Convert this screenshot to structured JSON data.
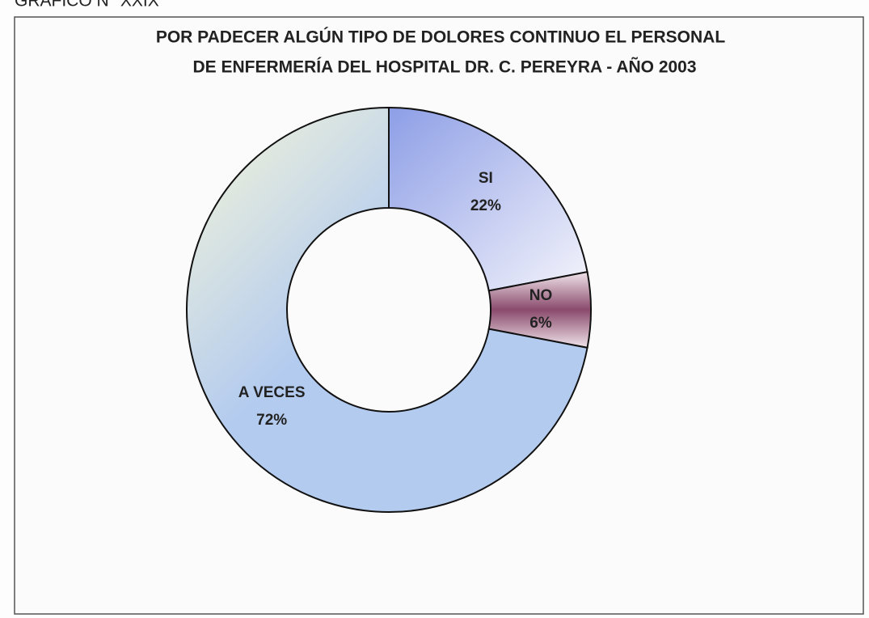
{
  "chart_data": {
    "type": "donut",
    "caption": "GRAFICO N° XXIX",
    "title": [
      "POR PADECER ALGÚN TIPO DE DOLORES CONTINUO EL PERSONAL",
      "DE ENFERMERÍA  DEL HOSPITAL DR. C. PEREYRA - AÑO 2003"
    ],
    "categories": [
      "SI",
      "NO",
      "A VECES"
    ],
    "values": [
      22,
      6,
      72
    ],
    "value_labels": [
      "22%",
      "6%",
      "72%"
    ],
    "colors": [
      "#8d9ee6",
      "#8a4a6c",
      "#b3cbef"
    ]
  }
}
